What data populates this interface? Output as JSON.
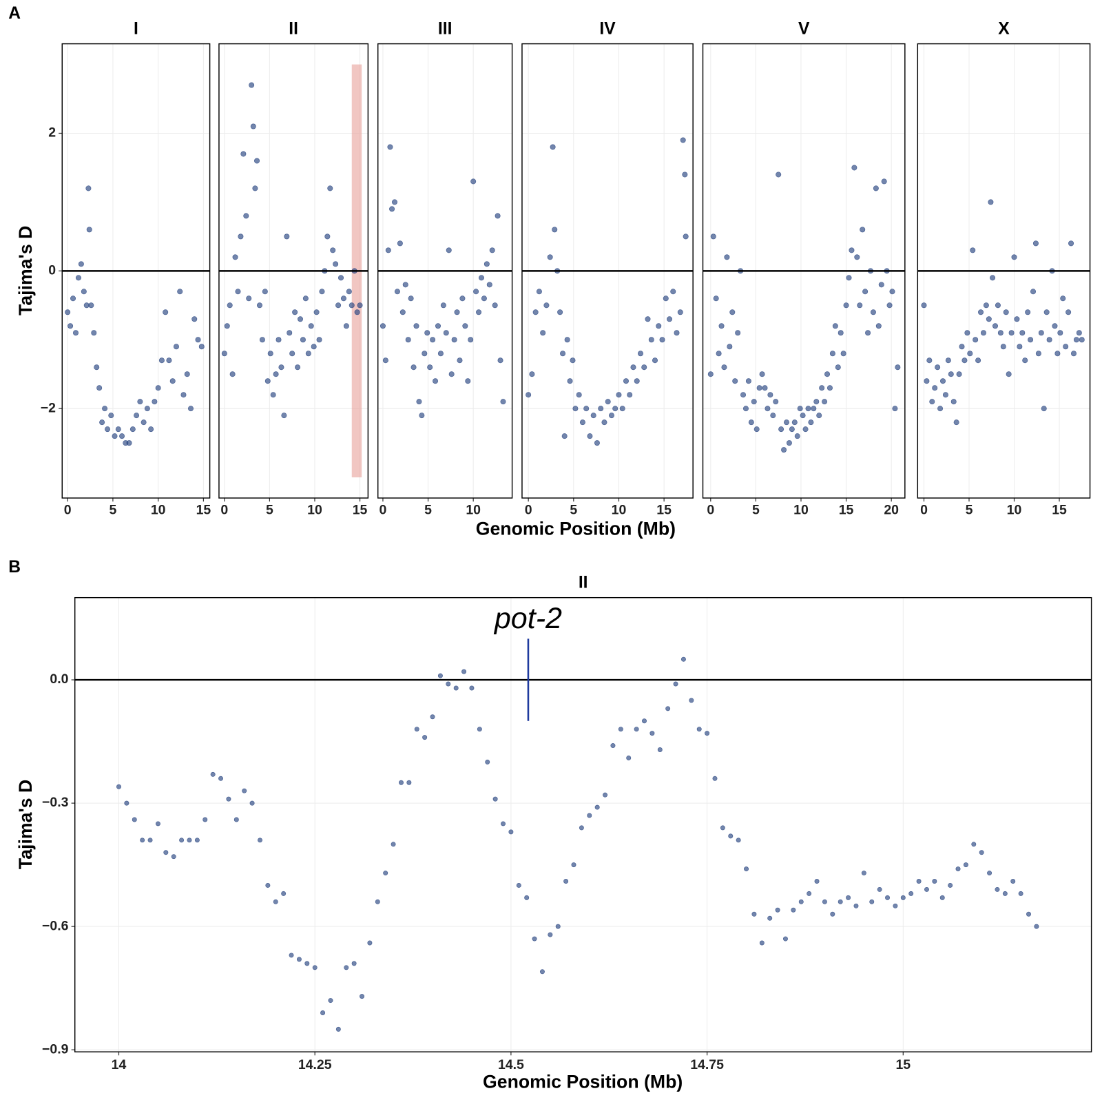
{
  "chart_data": [
    {
      "type": "scatter",
      "panel": "A",
      "x_label": "Genomic Position (Mb)",
      "y_label": "Tajima's D",
      "color": "#27437f",
      "ylim": [
        -3.3,
        3.3
      ],
      "yticks": [
        {
          "value": -2,
          "label": "−2"
        },
        0,
        2
      ],
      "hline": 0,
      "grid": true,
      "facets": [
        {
          "title": "I",
          "xlim": [
            -0.6,
            15.7
          ],
          "xticks": [
            0,
            5,
            10,
            15
          ],
          "x": [
            0,
            0.3,
            0.6,
            0.9,
            1.2,
            1.5,
            1.8,
            2.1,
            2.3,
            2.4,
            2.6,
            2.9,
            3.2,
            3.5,
            3.8,
            4.1,
            4.4,
            4.8,
            5.2,
            5.6,
            6.0,
            6.4,
            6.8,
            7.2,
            7.6,
            8.0,
            8.4,
            8.8,
            9.2,
            9.6,
            10.0,
            10.4,
            10.8,
            11.2,
            11.6,
            12.0,
            12.4,
            12.8,
            13.2,
            13.6,
            14.0,
            14.4,
            14.8
          ],
          "y": [
            -0.6,
            -0.8,
            -0.4,
            -0.9,
            -0.1,
            0.1,
            -0.3,
            -0.5,
            1.2,
            0.6,
            -0.5,
            -0.9,
            -1.4,
            -1.7,
            -2.2,
            -2.0,
            -2.3,
            -2.1,
            -2.4,
            -2.3,
            -2.4,
            -2.5,
            -2.5,
            -2.3,
            -2.1,
            -1.9,
            -2.2,
            -2.0,
            -2.3,
            -1.9,
            -1.7,
            -1.3,
            -0.6,
            -1.3,
            -1.6,
            -1.1,
            -0.3,
            -1.8,
            -1.5,
            -2.0,
            -0.7,
            -1.0,
            -1.1
          ]
        },
        {
          "title": "II",
          "xlim": [
            -0.6,
            15.9
          ],
          "xticks": [
            0,
            5,
            10,
            15
          ],
          "highlight": {
            "xlim": [
              14.1,
              15.2
            ],
            "ylim": [
              -3,
              3
            ]
          },
          "x": [
            0,
            0.3,
            0.6,
            0.9,
            1.2,
            1.5,
            1.8,
            2.1,
            2.4,
            2.7,
            3.0,
            3.2,
            3.4,
            3.6,
            3.9,
            4.2,
            4.5,
            4.8,
            5.1,
            5.4,
            5.7,
            6.0,
            6.3,
            6.6,
            6.9,
            7.2,
            7.5,
            7.8,
            8.1,
            8.4,
            8.7,
            9.0,
            9.3,
            9.6,
            9.9,
            10.2,
            10.5,
            10.8,
            11.1,
            11.4,
            11.7,
            12.0,
            12.3,
            12.6,
            12.9,
            13.2,
            13.5,
            13.8,
            14.1,
            14.4,
            14.7,
            15.0
          ],
          "y": [
            -1.2,
            -0.8,
            -0.5,
            -1.5,
            0.2,
            -0.3,
            0.5,
            1.7,
            0.8,
            -0.4,
            2.7,
            2.1,
            1.2,
            1.6,
            -0.5,
            -1.0,
            -0.3,
            -1.6,
            -1.2,
            -1.8,
            -1.5,
            -1.0,
            -1.4,
            -2.1,
            0.5,
            -0.9,
            -1.2,
            -0.6,
            -1.4,
            -0.7,
            -1.0,
            -0.4,
            -1.2,
            -0.8,
            -1.1,
            -0.6,
            -1.0,
            -0.3,
            0.0,
            0.5,
            1.2,
            0.3,
            0.1,
            -0.5,
            -0.1,
            -0.4,
            -0.8,
            -0.3,
            -0.5,
            0.0,
            -0.6,
            -0.5
          ]
        },
        {
          "title": "III",
          "xlim": [
            -0.55,
            14.3
          ],
          "xticks": [
            0,
            5,
            10
          ],
          "x": [
            0,
            0.3,
            0.6,
            0.8,
            1.0,
            1.3,
            1.6,
            1.9,
            2.2,
            2.5,
            2.8,
            3.1,
            3.4,
            3.7,
            4.0,
            4.3,
            4.6,
            4.9,
            5.2,
            5.5,
            5.8,
            6.1,
            6.4,
            6.7,
            7.0,
            7.3,
            7.6,
            7.9,
            8.2,
            8.5,
            8.8,
            9.1,
            9.4,
            9.7,
            10.0,
            10.3,
            10.6,
            10.9,
            11.2,
            11.5,
            11.8,
            12.1,
            12.4,
            12.7,
            13.0,
            13.3
          ],
          "y": [
            -0.8,
            -1.3,
            0.3,
            1.8,
            0.9,
            1.0,
            -0.3,
            0.4,
            -0.6,
            -0.2,
            -1.0,
            -0.4,
            -1.4,
            -0.8,
            -1.9,
            -2.1,
            -1.2,
            -0.9,
            -1.4,
            -1.0,
            -1.6,
            -0.8,
            -1.2,
            -0.5,
            -0.9,
            0.3,
            -1.5,
            -1.0,
            -0.6,
            -1.3,
            -0.4,
            -0.8,
            -1.6,
            -1.0,
            1.3,
            -0.3,
            -0.6,
            -0.1,
            -0.4,
            0.1,
            -0.2,
            0.3,
            -0.5,
            0.8,
            -1.3,
            -1.9
          ]
        },
        {
          "title": "IV",
          "xlim": [
            -0.7,
            18.2
          ],
          "xticks": [
            0,
            5,
            10,
            15
          ],
          "x": [
            0,
            0.4,
            0.8,
            1.2,
            1.6,
            2.0,
            2.4,
            2.7,
            2.9,
            3.2,
            3.5,
            3.8,
            4.0,
            4.3,
            4.6,
            4.9,
            5.2,
            5.6,
            6.0,
            6.4,
            6.8,
            7.2,
            7.6,
            8.0,
            8.4,
            8.8,
            9.2,
            9.6,
            10.0,
            10.4,
            10.8,
            11.2,
            11.6,
            12.0,
            12.4,
            12.8,
            13.2,
            13.6,
            14.0,
            14.4,
            14.8,
            15.2,
            15.6,
            16.0,
            16.4,
            16.8,
            17.1,
            17.3,
            17.4
          ],
          "y": [
            -1.8,
            -1.5,
            -0.6,
            -0.3,
            -0.9,
            -0.5,
            0.2,
            1.8,
            0.6,
            0.0,
            -0.6,
            -1.2,
            -2.4,
            -1.0,
            -1.6,
            -1.3,
            -2.0,
            -1.8,
            -2.2,
            -2.0,
            -2.4,
            -2.1,
            -2.5,
            -2.0,
            -2.2,
            -1.9,
            -2.1,
            -2.0,
            -1.8,
            -2.0,
            -1.6,
            -1.8,
            -1.4,
            -1.6,
            -1.2,
            -1.4,
            -0.7,
            -1.0,
            -1.3,
            -0.8,
            -1.0,
            -0.4,
            -0.7,
            -0.3,
            -0.9,
            -0.6,
            1.9,
            1.4,
            0.5
          ]
        },
        {
          "title": "V",
          "xlim": [
            -0.86,
            21.5
          ],
          "xticks": [
            0,
            5,
            10,
            15,
            20
          ],
          "x": [
            0,
            0.3,
            0.6,
            0.9,
            1.2,
            1.5,
            1.8,
            2.1,
            2.4,
            2.7,
            3.0,
            3.3,
            3.6,
            3.9,
            4.2,
            4.5,
            4.8,
            5.1,
            5.4,
            5.7,
            6.0,
            6.3,
            6.6,
            6.9,
            7.2,
            7.5,
            7.8,
            8.1,
            8.4,
            8.7,
            9.0,
            9.3,
            9.6,
            9.9,
            10.2,
            10.5,
            10.8,
            11.1,
            11.4,
            11.7,
            12.0,
            12.3,
            12.6,
            12.9,
            13.2,
            13.5,
            13.8,
            14.1,
            14.4,
            14.7,
            15.0,
            15.3,
            15.6,
            15.9,
            16.2,
            16.5,
            16.8,
            17.1,
            17.4,
            17.7,
            18.0,
            18.3,
            18.6,
            18.9,
            19.2,
            19.5,
            19.8,
            20.1,
            20.4,
            20.7
          ],
          "y": [
            -1.5,
            0.5,
            -0.4,
            -1.2,
            -0.8,
            -1.4,
            0.2,
            -1.1,
            -0.6,
            -1.6,
            -0.9,
            0.0,
            -1.8,
            -2.0,
            -1.6,
            -2.2,
            -1.9,
            -2.3,
            -1.7,
            -1.5,
            -1.7,
            -2.0,
            -1.8,
            -2.1,
            -1.9,
            1.4,
            -2.3,
            -2.6,
            -2.2,
            -2.5,
            -2.3,
            -2.2,
            -2.4,
            -2.0,
            -2.1,
            -2.3,
            -2.0,
            -2.2,
            -2.0,
            -1.9,
            -2.1,
            -1.7,
            -1.9,
            -1.5,
            -1.7,
            -1.2,
            -0.8,
            -1.4,
            -0.9,
            -1.2,
            -0.5,
            -0.1,
            0.3,
            1.5,
            0.2,
            -0.5,
            0.6,
            -0.3,
            -0.9,
            0.0,
            -0.6,
            1.2,
            -0.8,
            -0.2,
            1.3,
            0.0,
            -0.5,
            -0.3,
            -2.0,
            -1.4
          ]
        },
        {
          "title": "X",
          "xlim": [
            -0.7,
            18.4
          ],
          "xticks": [
            0,
            5,
            10,
            15
          ],
          "x": [
            0,
            0.3,
            0.6,
            0.9,
            1.2,
            1.5,
            1.8,
            2.1,
            2.4,
            2.7,
            3.0,
            3.3,
            3.6,
            3.9,
            4.2,
            4.5,
            4.8,
            5.1,
            5.4,
            5.7,
            6.0,
            6.3,
            6.6,
            6.9,
            7.2,
            7.4,
            7.6,
            7.9,
            8.2,
            8.5,
            8.8,
            9.1,
            9.4,
            9.7,
            10.0,
            10.3,
            10.6,
            10.9,
            11.2,
            11.5,
            11.8,
            12.1,
            12.4,
            12.7,
            13.0,
            13.3,
            13.6,
            13.9,
            14.2,
            14.5,
            14.8,
            15.1,
            15.4,
            15.7,
            16.0,
            16.3,
            16.6,
            16.9,
            17.2,
            17.5
          ],
          "y": [
            -0.5,
            -1.6,
            -1.3,
            -1.9,
            -1.7,
            -1.4,
            -2.0,
            -1.6,
            -1.8,
            -1.3,
            -1.5,
            -1.9,
            -2.2,
            -1.5,
            -1.1,
            -1.3,
            -0.9,
            -1.2,
            0.3,
            -1.0,
            -1.3,
            -0.6,
            -0.9,
            -0.5,
            -0.7,
            1.0,
            -0.1,
            -0.8,
            -0.5,
            -0.9,
            -1.1,
            -0.6,
            -1.5,
            -0.9,
            0.2,
            -0.7,
            -1.1,
            -0.9,
            -1.3,
            -0.6,
            -1.0,
            -0.3,
            0.4,
            -1.2,
            -0.9,
            -2.0,
            -0.6,
            -1.0,
            0.0,
            -0.8,
            -1.2,
            -0.9,
            -0.4,
            -1.1,
            -0.6,
            0.4,
            -1.2,
            -1.0,
            -0.9,
            -1.0
          ]
        }
      ]
    },
    {
      "type": "scatter",
      "panel": "B",
      "x_label": "Genomic Position (Mb)",
      "y_label": "Tajima's D",
      "color": "#27437f",
      "ylim": [
        -0.905,
        0.2
      ],
      "yticks": [
        {
          "value": -0.9,
          "label": "−0.9"
        },
        {
          "value": -0.6,
          "label": "−0.6"
        },
        {
          "value": -0.3,
          "label": "−0.3"
        },
        {
          "value": 0,
          "label": "0.0"
        }
      ],
      "hline": 0,
      "grid": true,
      "annotation": {
        "text": "pot-2",
        "x": 14.522,
        "y0": -0.1,
        "y1": 0.1,
        "color": "#1f3a9e"
      },
      "facets": [
        {
          "title": "II",
          "xlim": [
            13.944,
            15.24
          ],
          "xticks": [
            14,
            14.25,
            14.5,
            14.75,
            15
          ],
          "x": [
            14.0,
            14.01,
            14.02,
            14.03,
            14.04,
            14.05,
            14.06,
            14.07,
            14.08,
            14.09,
            14.1,
            14.11,
            14.12,
            14.13,
            14.14,
            14.15,
            14.16,
            14.17,
            14.18,
            14.19,
            14.2,
            14.21,
            14.22,
            14.23,
            14.24,
            14.25,
            14.26,
            14.27,
            14.28,
            14.29,
            14.3,
            14.31,
            14.32,
            14.33,
            14.34,
            14.35,
            14.36,
            14.37,
            14.38,
            14.39,
            14.4,
            14.41,
            14.42,
            14.43,
            14.44,
            14.45,
            14.46,
            14.47,
            14.48,
            14.49,
            14.5,
            14.51,
            14.52,
            14.53,
            14.54,
            14.55,
            14.56,
            14.57,
            14.58,
            14.59,
            14.6,
            14.61,
            14.62,
            14.63,
            14.64,
            14.65,
            14.66,
            14.67,
            14.68,
            14.69,
            14.7,
            14.71,
            14.72,
            14.73,
            14.74,
            14.75,
            14.76,
            14.77,
            14.78,
            14.79,
            14.8,
            14.81,
            14.82,
            14.83,
            14.84,
            14.85,
            14.86,
            14.87,
            14.88,
            14.89,
            14.9,
            14.91,
            14.92,
            14.93,
            14.94,
            14.95,
            14.96,
            14.97,
            14.98,
            14.99,
            15.0,
            15.01,
            15.02,
            15.03,
            15.04,
            15.05,
            15.06,
            15.07,
            15.08,
            15.09,
            15.1,
            15.11,
            15.12,
            15.13,
            15.14,
            15.15,
            15.16,
            15.17
          ],
          "y": [
            -0.26,
            -0.3,
            -0.34,
            -0.39,
            -0.39,
            -0.35,
            -0.42,
            -0.43,
            -0.39,
            -0.39,
            -0.39,
            -0.34,
            -0.23,
            -0.24,
            -0.29,
            -0.34,
            -0.27,
            -0.3,
            -0.39,
            -0.5,
            -0.54,
            -0.52,
            -0.67,
            -0.68,
            -0.69,
            -0.7,
            -0.81,
            -0.78,
            -0.85,
            -0.7,
            -0.69,
            -0.77,
            -0.64,
            -0.54,
            -0.47,
            -0.4,
            -0.25,
            -0.25,
            -0.12,
            -0.14,
            -0.09,
            0.01,
            -0.01,
            -0.02,
            0.02,
            -0.02,
            -0.12,
            -0.2,
            -0.29,
            -0.35,
            -0.37,
            -0.5,
            -0.53,
            -0.63,
            -0.71,
            -0.62,
            -0.6,
            -0.49,
            -0.45,
            -0.36,
            -0.33,
            -0.31,
            -0.28,
            -0.16,
            -0.12,
            -0.19,
            -0.12,
            -0.1,
            -0.13,
            -0.17,
            -0.07,
            -0.01,
            0.05,
            -0.05,
            -0.12,
            -0.13,
            -0.24,
            -0.36,
            -0.38,
            -0.39,
            -0.46,
            -0.57,
            -0.64,
            -0.58,
            -0.56,
            -0.63,
            -0.56,
            -0.54,
            -0.52,
            -0.49,
            -0.54,
            -0.57,
            -0.54,
            -0.53,
            -0.55,
            -0.47,
            -0.54,
            -0.51,
            -0.53,
            -0.55,
            -0.53,
            -0.52,
            -0.49,
            -0.51,
            -0.49,
            -0.53,
            -0.5,
            -0.46,
            -0.45,
            -0.4,
            -0.42,
            -0.47,
            -0.51,
            -0.52,
            -0.49,
            -0.52,
            -0.57,
            -0.6
          ]
        }
      ]
    }
  ]
}
